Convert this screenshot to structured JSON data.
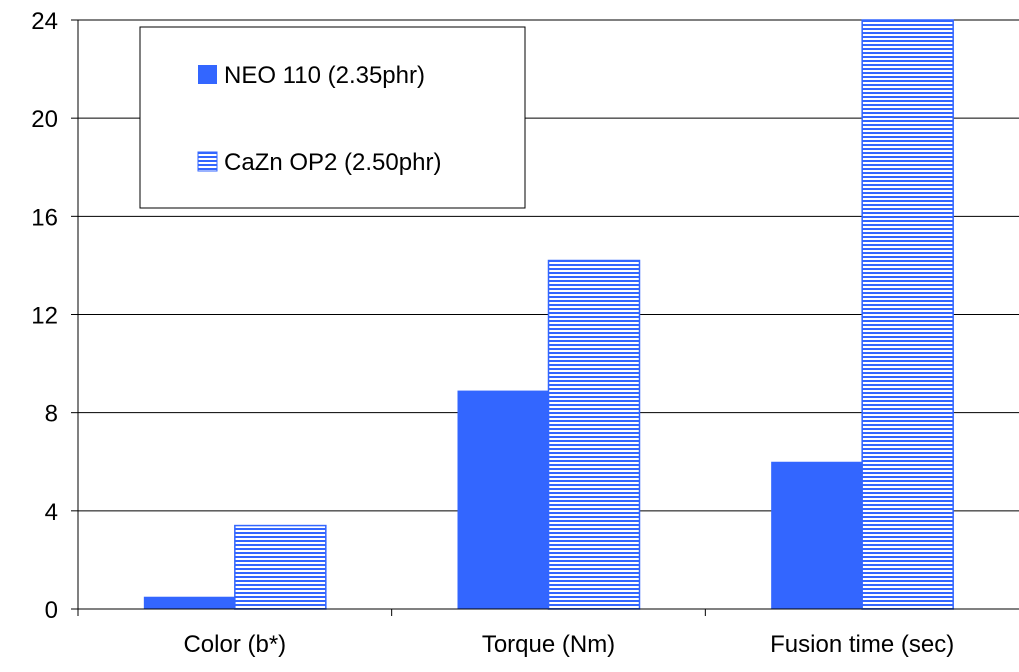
{
  "chart_data": {
    "type": "bar",
    "categories": [
      "Color (b*)",
      "Torque (Nm)",
      "Fusion time (sec)"
    ],
    "series": [
      {
        "name": "NEO 110 (2.35phr)",
        "values": [
          0.5,
          8.9,
          6.0
        ],
        "color": "#3366ff",
        "fill": "solid"
      },
      {
        "name": "CaZn OP2 (2.50phr)",
        "values": [
          3.4,
          14.2,
          24.0
        ],
        "color": "#3366ff",
        "fill": "horizontal-stripes"
      }
    ],
    "ylim": [
      0,
      24
    ],
    "yticks": [
      "0",
      "4",
      "8",
      "12",
      "16",
      "20",
      "24"
    ],
    "grid": true,
    "legend_position": "top-left"
  }
}
